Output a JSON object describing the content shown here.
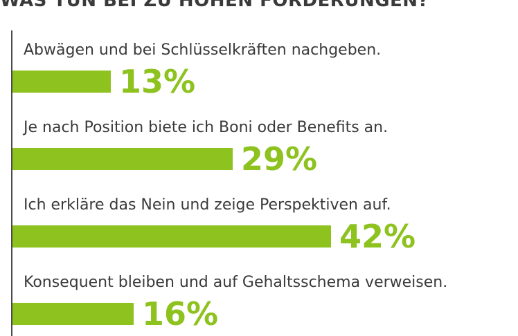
{
  "chart_data": {
    "type": "bar",
    "orientation": "horizontal",
    "title": "WAS TUN BEI ZU HOHEN FORDERUNGEN?",
    "categories": [
      "Abwägen und bei Schlüsselkräften nachgeben.",
      "Je nach Position biete ich Boni oder Benefits an.",
      "Ich erkläre das Nein und zeige Perspektiven auf.",
      "Konsequent bleiben und auf Gehaltsschema verweisen."
    ],
    "values": [
      13,
      29,
      42,
      16
    ],
    "value_labels": [
      "13%",
      "29%",
      "42%",
      "16%"
    ],
    "unit": "%",
    "xlim": [
      0,
      42
    ],
    "bar_color": "#8dc21f",
    "text_color": "#3a3a3a"
  }
}
